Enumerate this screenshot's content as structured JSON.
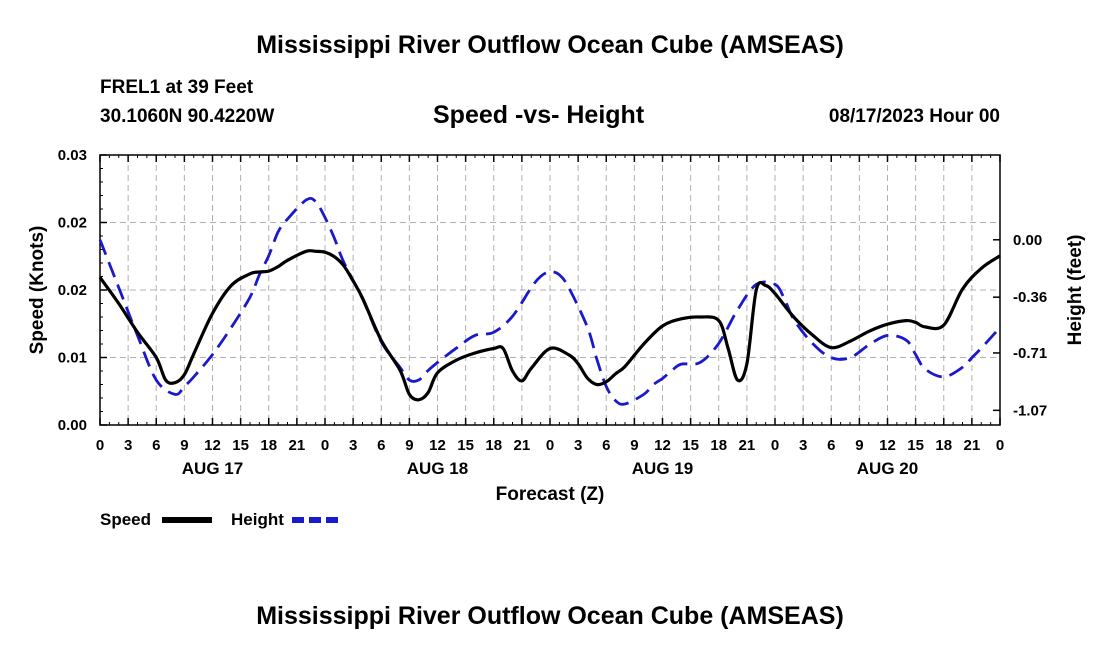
{
  "page": {
    "title_top": "Mississippi River Outflow Ocean Cube (AMSEAS)",
    "title_bottom": "Mississippi River Outflow Ocean Cube (AMSEAS)",
    "station": "FREL1 at 39 Feet",
    "coords": "30.1060N  90.4220W",
    "chart_title": "Speed -vs- Height",
    "datetime": "08/17/2023 Hour 00"
  },
  "chart_data": {
    "type": "line",
    "title": "Speed -vs- Height",
    "xlabel": "Forecast (Z)",
    "ylabel_left": "Speed (Knots)",
    "ylabel_right": "Height (feet)",
    "x_range_hours": [
      0,
      96
    ],
    "x_tick_step_hours": 3,
    "x_tick_labels": [
      "0",
      "3",
      "6",
      "9",
      "12",
      "15",
      "18",
      "21",
      "0",
      "3",
      "6",
      "9",
      "12",
      "15",
      "18",
      "21",
      "0",
      "3",
      "6",
      "9",
      "12",
      "15",
      "18",
      "21",
      "0",
      "3",
      "6",
      "9",
      "12",
      "15",
      "18",
      "21",
      "0"
    ],
    "date_labels": [
      {
        "label": "AUG 17",
        "hour": 12
      },
      {
        "label": "AUG 18",
        "hour": 36
      },
      {
        "label": "AUG 19",
        "hour": 60
      },
      {
        "label": "AUG 20",
        "hour": 84
      }
    ],
    "left_axis": {
      "range": [
        0,
        0.03
      ],
      "ticks": [
        0,
        0.0075,
        0.015,
        0.0225,
        0.03
      ],
      "tick_labels": [
        "0.00",
        "0.01",
        "0.02",
        "0.02",
        "0.03"
      ]
    },
    "right_axis": {
      "range": [
        -1.162,
        0.532
      ],
      "ticks": [
        0.0,
        -0.36,
        -0.71,
        -1.07
      ],
      "tick_labels": [
        "0.00",
        "-0.36",
        "-0.71",
        "-1.07"
      ]
    },
    "series": [
      {
        "name": "Speed",
        "axis": "left",
        "color": "#000000",
        "dash": "solid",
        "x": [
          0,
          2,
          4,
          6,
          7,
          8,
          9,
          10,
          12,
          14,
          16,
          17,
          18,
          19,
          20,
          22,
          23,
          24,
          25,
          26,
          27,
          28,
          30,
          32,
          33,
          34,
          35,
          36,
          38,
          40,
          42,
          43,
          44,
          45,
          46,
          48,
          50,
          51,
          52,
          53,
          54,
          55,
          56,
          58,
          60,
          62,
          64,
          66,
          67,
          68,
          69,
          70,
          71,
          72,
          74,
          76,
          78,
          80,
          82,
          84,
          86,
          87,
          88,
          90,
          92,
          94,
          96
        ],
        "y": [
          0.0164,
          0.0135,
          0.0103,
          0.0075,
          0.005,
          0.0047,
          0.0056,
          0.0079,
          0.0124,
          0.0155,
          0.0168,
          0.017,
          0.0171,
          0.0176,
          0.0183,
          0.0193,
          0.0193,
          0.0192,
          0.0187,
          0.0177,
          0.016,
          0.0141,
          0.0094,
          0.0061,
          0.0034,
          0.0028,
          0.0036,
          0.0058,
          0.0072,
          0.008,
          0.0085,
          0.0085,
          0.006,
          0.0049,
          0.0063,
          0.0085,
          0.0078,
          0.0068,
          0.0052,
          0.0045,
          0.0048,
          0.0057,
          0.0065,
          0.009,
          0.011,
          0.0118,
          0.012,
          0.0116,
          0.0085,
          0.005,
          0.0068,
          0.015,
          0.0155,
          0.0146,
          0.012,
          0.01,
          0.0086,
          0.0093,
          0.0104,
          0.0112,
          0.0116,
          0.0114,
          0.0109,
          0.0111,
          0.0151,
          0.0174,
          0.0188
        ]
      },
      {
        "name": "Height",
        "axis": "right",
        "color": "#1a1acc",
        "dash": "dashed",
        "x": [
          0,
          2,
          4,
          6,
          8,
          9,
          10,
          12,
          14,
          16,
          17,
          18,
          19,
          20,
          22,
          23,
          24,
          25,
          26,
          28,
          30,
          32,
          33,
          34,
          35,
          36,
          38,
          40,
          42,
          44,
          46,
          47,
          48,
          49,
          50,
          52,
          53,
          54,
          55,
          56,
          58,
          59,
          60,
          61,
          62,
          64,
          66,
          68,
          70,
          72,
          73,
          74,
          76,
          78,
          80,
          82,
          84,
          86,
          87,
          88,
          90,
          92,
          93,
          94,
          96
        ],
        "y": [
          0.0,
          -0.3,
          -0.6,
          -0.88,
          -0.97,
          -0.92,
          -0.86,
          -0.72,
          -0.55,
          -0.36,
          -0.22,
          -0.1,
          0.05,
          0.13,
          0.25,
          0.24,
          0.14,
          0.01,
          -0.14,
          -0.37,
          -0.64,
          -0.8,
          -0.88,
          -0.88,
          -0.82,
          -0.77,
          -0.68,
          -0.6,
          -0.58,
          -0.48,
          -0.3,
          -0.23,
          -0.2,
          -0.22,
          -0.3,
          -0.55,
          -0.75,
          -0.92,
          -1.01,
          -1.03,
          -0.97,
          -0.91,
          -0.87,
          -0.82,
          -0.78,
          -0.77,
          -0.65,
          -0.44,
          -0.28,
          -0.28,
          -0.37,
          -0.5,
          -0.65,
          -0.74,
          -0.74,
          -0.66,
          -0.6,
          -0.63,
          -0.72,
          -0.81,
          -0.86,
          -0.8,
          -0.74,
          -0.68,
          -0.55
        ]
      }
    ],
    "legend": [
      "Speed",
      "Height"
    ],
    "grid": true
  }
}
